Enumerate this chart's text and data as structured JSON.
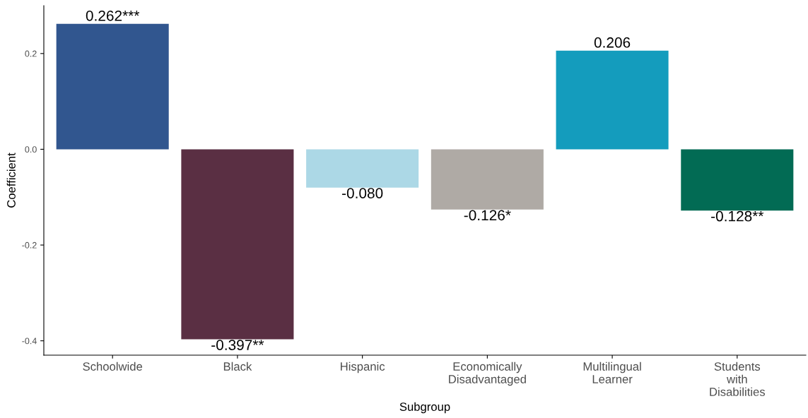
{
  "chart_data": {
    "type": "bar",
    "xlabel": "Subgroup",
    "ylabel": "Coefficient",
    "categories": [
      "Schoolwide",
      "Black",
      "Hispanic",
      "Economically\nDisadvantaged",
      "Multilingual\nLearner",
      "Students\nwith\nDisabilities"
    ],
    "values": [
      0.262,
      -0.397,
      -0.08,
      -0.126,
      0.206,
      -0.128
    ],
    "colors": [
      "#31568f",
      "#5a2f43",
      "#acd8e6",
      "#afaaa5",
      "#149cbd",
      "#026b54"
    ],
    "value_labels": [
      "0.262***",
      "-0.397**",
      "-0.080",
      "-0.126*",
      "0.206",
      "-0.128**"
    ],
    "ylim": [
      -0.43,
      0.3
    ],
    "yticks": [
      {
        "value": -0.4,
        "label": "-0.4"
      },
      {
        "value": -0.2,
        "label": "-0.2"
      },
      {
        "value": 0.0,
        "label": "0.0"
      },
      {
        "value": 0.2,
        "label": "0.2"
      }
    ],
    "grid": false
  }
}
